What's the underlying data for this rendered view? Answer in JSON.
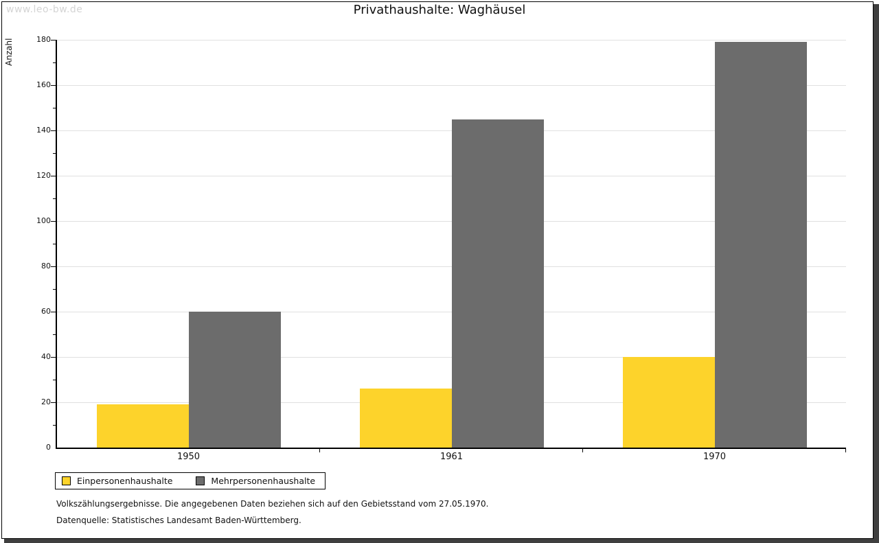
{
  "watermark": "www.leo-bw.de",
  "title": "Privathaushalte: Waghäusel",
  "chart_data": {
    "type": "bar",
    "title": "Privathaushalte: Waghäusel",
    "categories": [
      "1950",
      "1961",
      "1970"
    ],
    "series": [
      {
        "name": "Einpersonenhaushalte",
        "color": "#FDD32B",
        "values": [
          19,
          26,
          40
        ]
      },
      {
        "name": "Mehrpersonenhaushalte",
        "color": "#6C6C6C",
        "values": [
          60,
          145,
          179
        ]
      }
    ],
    "xlabel": "",
    "ylabel": "Anzahl",
    "ylim": [
      0,
      180
    ],
    "y_major_step": 20,
    "y_minor_step": 10,
    "grid": "horizontal-major-only",
    "gridline_color": "#e0e0e0",
    "axis_color": "#000000",
    "legend_position": "bottom-left"
  },
  "footnotes": {
    "line1": "Volkszählungsergebnisse. Die angegebenen Daten beziehen sich auf den Gebietsstand vom 27.05.1970.",
    "line2": "Datenquelle: Statistisches Landesamt Baden-Württemberg."
  }
}
